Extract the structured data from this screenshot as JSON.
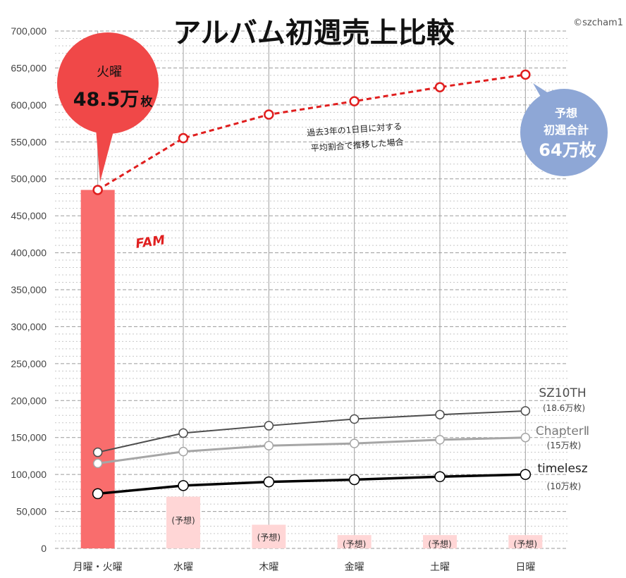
{
  "colors": {
    "fam_bar": "#f96d6d",
    "forecast_bar": "#ffd6d6",
    "fam_line": "#e01e1e",
    "sz10th": "#4d4d4d",
    "chapter2": "#a6a6a6",
    "timelesz": "#000000",
    "bubble_red": "#f04848",
    "bubble_blue": "#8ea7d6"
  },
  "chart_data": {
    "type": "bar",
    "title": "アルバム初週売上比較",
    "credit": "©szcham1",
    "categories": [
      "月曜・火曜",
      "水曜",
      "木曜",
      "金曜",
      "土曜",
      "日曜"
    ],
    "ylim": [
      0,
      700000
    ],
    "yticks": [
      "0",
      "50,000",
      "100,000",
      "150,000",
      "200,000",
      "250,000",
      "300,000",
      "350,000",
      "400,000",
      "450,000",
      "500,000",
      "550,000",
      "600,000",
      "650,000",
      "700,000"
    ],
    "grid": true,
    "bars": {
      "name": "FAM",
      "values": [
        485000,
        70000,
        32000,
        18000,
        18000,
        18000
      ],
      "forecast_label": "(予想)"
    },
    "series": [
      {
        "name": "FAM",
        "line_style": "dashed",
        "values": [
          485000,
          555000,
          587000,
          605000,
          624000,
          641000
        ]
      },
      {
        "name": "SZ10TH",
        "sub_label": "(18.6万枚)",
        "values": [
          130000,
          156000,
          166000,
          175000,
          181000,
          186000
        ]
      },
      {
        "name": "ChapterⅡ",
        "sub_label": "(15万枚)",
        "values": [
          115000,
          131000,
          139000,
          142000,
          147000,
          150000
        ]
      },
      {
        "name": "timelesz",
        "sub_label": "(10万枚)",
        "values": [
          74000,
          85000,
          90000,
          93000,
          97000,
          100000
        ]
      }
    ],
    "annotations": {
      "note_line1": "過去3年の1日目に対する",
      "note_line2": "平均割合で推移した場合",
      "fam_label": "FAM",
      "bubble_left": {
        "line1": "火曜",
        "value": "48.5万",
        "unit": "枚"
      },
      "bubble_right": {
        "line1": "予想",
        "line2": "初週合計",
        "value": "64万枚"
      }
    }
  }
}
